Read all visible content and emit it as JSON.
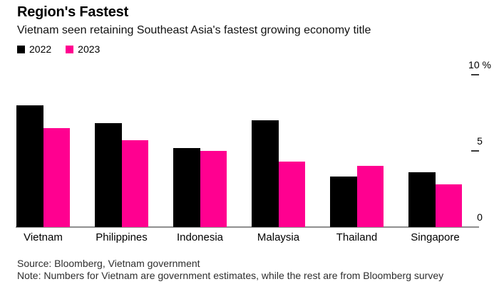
{
  "header": {
    "title": "Region's Fastest",
    "subtitle": "Vietnam seen retaining Southeast Asia's fastest growing economy title"
  },
  "legend": {
    "items": [
      {
        "label": "2022",
        "color": "#000000"
      },
      {
        "label": "2023",
        "color": "#ff0090"
      }
    ]
  },
  "chart_data": {
    "type": "bar",
    "title": "Region's Fastest",
    "subtitle": "Vietnam seen retaining Southeast Asia's fastest growing economy title",
    "categories": [
      "Vietnam",
      "Philippines",
      "Indonesia",
      "Malaysia",
      "Thailand",
      "Singapore"
    ],
    "series": [
      {
        "name": "2022",
        "color": "#000000",
        "values": [
          8.0,
          6.8,
          5.2,
          7.0,
          3.3,
          3.6
        ]
      },
      {
        "name": "2023",
        "color": "#ff0090",
        "values": [
          6.5,
          5.7,
          5.0,
          4.3,
          4.0,
          2.8
        ]
      }
    ],
    "unit": "%",
    "ylim": [
      0,
      10
    ],
    "yticks": [
      {
        "value": 10,
        "label": "10 %"
      },
      {
        "value": 5,
        "label": "5"
      },
      {
        "value": 0,
        "label": "0"
      }
    ],
    "axis_side": "right",
    "grid": false,
    "legend_position": "top-left"
  },
  "footer": {
    "source": "Source: Bloomberg, Vietnam government",
    "note": "Note: Numbers for Vietnam are government estimates, while the rest are from Bloomberg survey"
  },
  "colors": {
    "bar_2022": "#000000",
    "bar_2023": "#ff0090",
    "axis_line": "#8f8f8f",
    "tick_dash": "#3a3a3a",
    "text": "#000000"
  }
}
